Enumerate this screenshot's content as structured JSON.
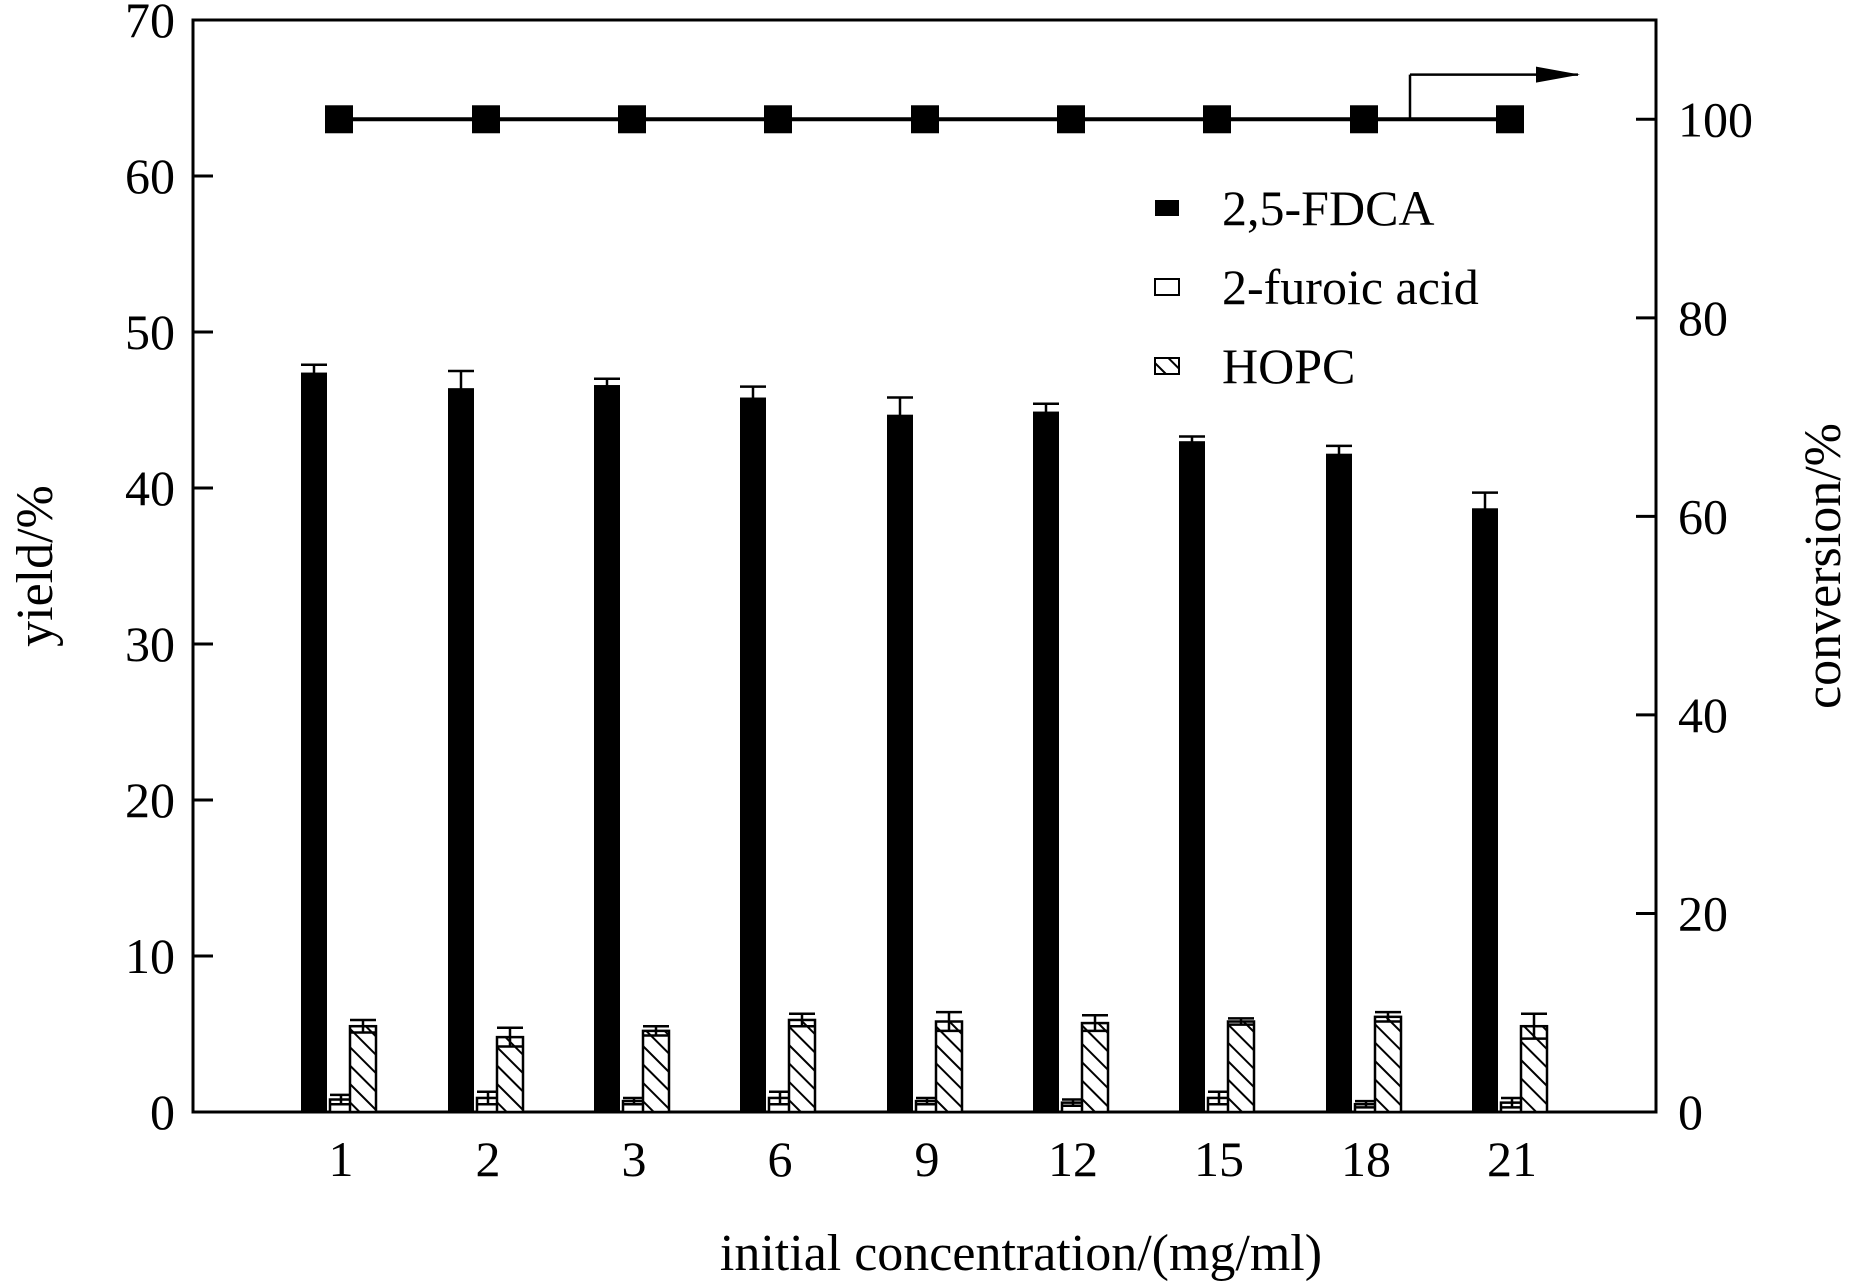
{
  "chart_data": {
    "type": "bar",
    "xlabel": "initial concentration/(mg/ml)",
    "ylabel": "yield/%",
    "y2label": "conversion/%",
    "ylim": [
      0,
      70
    ],
    "y2lim": [
      0,
      110
    ],
    "yticks": [
      "0",
      "10",
      "20",
      "30",
      "40",
      "50",
      "60",
      "70"
    ],
    "y2ticks": [
      "0",
      "20",
      "40",
      "60",
      "80",
      "100"
    ],
    "categories": [
      "1",
      "2",
      "3",
      "6",
      "9",
      "12",
      "15",
      "18",
      "21"
    ],
    "legend_position": "top-right",
    "grid": false,
    "series": [
      {
        "name": "2,5-FDCA",
        "axis": "left",
        "pattern": "solid",
        "values": [
          47.4,
          46.4,
          46.6,
          45.8,
          44.7,
          44.9,
          43.0,
          42.2,
          38.7
        ],
        "errors": [
          0.5,
          1.1,
          0.4,
          0.7,
          1.1,
          0.5,
          0.3,
          0.5,
          1.0
        ]
      },
      {
        "name": "2-furoic acid",
        "axis": "left",
        "pattern": "white",
        "values": [
          0.8,
          0.9,
          0.7,
          0.9,
          0.7,
          0.6,
          0.9,
          0.5,
          0.6
        ],
        "errors": [
          0.3,
          0.4,
          0.2,
          0.4,
          0.2,
          0.2,
          0.4,
          0.2,
          0.3
        ]
      },
      {
        "name": "HOPC",
        "axis": "left",
        "pattern": "hatched",
        "values": [
          5.5,
          4.8,
          5.2,
          5.9,
          5.8,
          5.7,
          5.8,
          6.1,
          5.5
        ],
        "errors": [
          0.4,
          0.6,
          0.3,
          0.4,
          0.6,
          0.5,
          0.2,
          0.3,
          0.8
        ]
      },
      {
        "name": "conversion",
        "axis": "right",
        "type": "line",
        "values": [
          100,
          100,
          100,
          100,
          100,
          100,
          100,
          100,
          100
        ]
      }
    ]
  }
}
